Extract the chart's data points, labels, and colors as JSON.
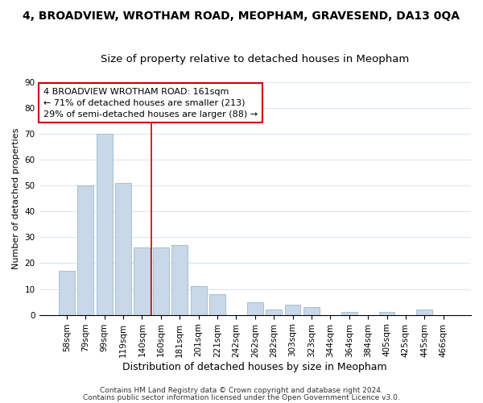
{
  "title": "4, BROADVIEW, WROTHAM ROAD, MEOPHAM, GRAVESEND, DA13 0QA",
  "subtitle": "Size of property relative to detached houses in Meopham",
  "xlabel": "Distribution of detached houses by size in Meopham",
  "ylabel": "Number of detached properties",
  "bar_labels": [
    "58sqm",
    "79sqm",
    "99sqm",
    "119sqm",
    "140sqm",
    "160sqm",
    "181sqm",
    "201sqm",
    "221sqm",
    "242sqm",
    "262sqm",
    "282sqm",
    "303sqm",
    "323sqm",
    "344sqm",
    "364sqm",
    "384sqm",
    "405sqm",
    "425sqm",
    "445sqm",
    "466sqm"
  ],
  "bar_values": [
    17,
    50,
    70,
    51,
    26,
    26,
    27,
    11,
    8,
    0,
    5,
    2,
    4,
    3,
    0,
    1,
    0,
    1,
    0,
    2,
    0
  ],
  "bar_color": "#c8d8e8",
  "bar_edge_color": "#a0b8cc",
  "vline_x": 4.5,
  "vline_color": "#cc0000",
  "ylim": [
    0,
    90
  ],
  "yticks": [
    0,
    10,
    20,
    30,
    40,
    50,
    60,
    70,
    80,
    90
  ],
  "annotation_text": "4 BROADVIEW WROTHAM ROAD: 161sqm\n← 71% of detached houses are smaller (213)\n29% of semi-detached houses are larger (88) →",
  "annotation_box_edgecolor": "#cc0000",
  "footer_line1": "Contains HM Land Registry data © Crown copyright and database right 2024.",
  "footer_line2": "Contains public sector information licensed under the Open Government Licence v3.0.",
  "title_fontsize": 10,
  "subtitle_fontsize": 9.5,
  "xlabel_fontsize": 9,
  "ylabel_fontsize": 8,
  "tick_fontsize": 7.5,
  "annotation_fontsize": 8,
  "footer_fontsize": 6.5
}
